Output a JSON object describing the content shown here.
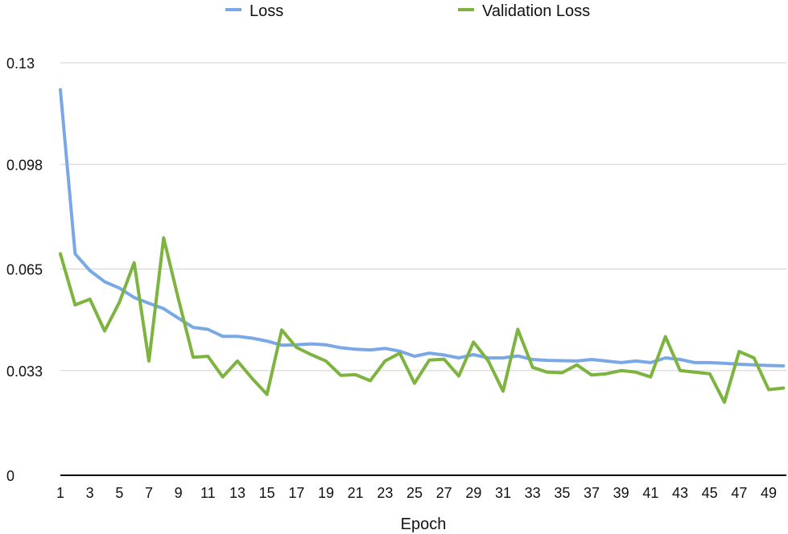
{
  "chart_data": {
    "type": "line",
    "title": "",
    "xlabel": "Epoch",
    "ylabel": "",
    "x": [
      1,
      2,
      3,
      4,
      5,
      6,
      7,
      8,
      9,
      10,
      11,
      12,
      13,
      14,
      15,
      16,
      17,
      18,
      19,
      20,
      21,
      22,
      23,
      24,
      25,
      26,
      27,
      28,
      29,
      30,
      31,
      32,
      33,
      34,
      35,
      36,
      37,
      38,
      39,
      40,
      41,
      42,
      43,
      44,
      45,
      46,
      47,
      48,
      49,
      50
    ],
    "x_tick_labels": [
      "1",
      "3",
      "5",
      "7",
      "9",
      "11",
      "13",
      "15",
      "17",
      "19",
      "21",
      "23",
      "25",
      "27",
      "29",
      "31",
      "33",
      "35",
      "37",
      "39",
      "41",
      "43",
      "45",
      "47",
      "49"
    ],
    "y_ticks": [
      0,
      0.033,
      0.065,
      0.098,
      0.13
    ],
    "y_tick_labels": [
      "0",
      "0.033",
      "0.065",
      "0.098",
      "0.13"
    ],
    "ylim": [
      0,
      0.13
    ],
    "grid": "horizontal",
    "legend_position": "top",
    "series": [
      {
        "name": "Loss",
        "color": "#7AA7E6",
        "values": [
          0.1215,
          0.0698,
          0.0645,
          0.061,
          0.059,
          0.056,
          0.0542,
          0.0525,
          0.0495,
          0.0466,
          0.046,
          0.0438,
          0.0438,
          0.0432,
          0.0423,
          0.041,
          0.0411,
          0.0414,
          0.0411,
          0.0402,
          0.0397,
          0.0395,
          0.04,
          0.0391,
          0.0375,
          0.0385,
          0.0379,
          0.037,
          0.038,
          0.037,
          0.037,
          0.0376,
          0.0365,
          0.0362,
          0.0361,
          0.036,
          0.0365,
          0.036,
          0.0355,
          0.036,
          0.0355,
          0.037,
          0.0365,
          0.0355,
          0.0355,
          0.0353,
          0.035,
          0.0348,
          0.0346,
          0.0345
        ]
      },
      {
        "name": "Validation Loss",
        "color": "#7DB33F",
        "values": [
          0.0698,
          0.0537,
          0.0555,
          0.0455,
          0.0545,
          0.067,
          0.036,
          0.0748,
          0.0555,
          0.0372,
          0.0375,
          0.031,
          0.036,
          0.0305,
          0.0255,
          0.0458,
          0.0403,
          0.038,
          0.036,
          0.0315,
          0.0317,
          0.0298,
          0.036,
          0.0385,
          0.029,
          0.0363,
          0.0366,
          0.0313,
          0.042,
          0.036,
          0.0265,
          0.046,
          0.034,
          0.0325,
          0.0323,
          0.0348,
          0.0316,
          0.032,
          0.033,
          0.0325,
          0.031,
          0.0437,
          0.033,
          0.0325,
          0.032,
          0.023,
          0.039,
          0.037,
          0.027,
          0.0275
        ]
      }
    ]
  }
}
